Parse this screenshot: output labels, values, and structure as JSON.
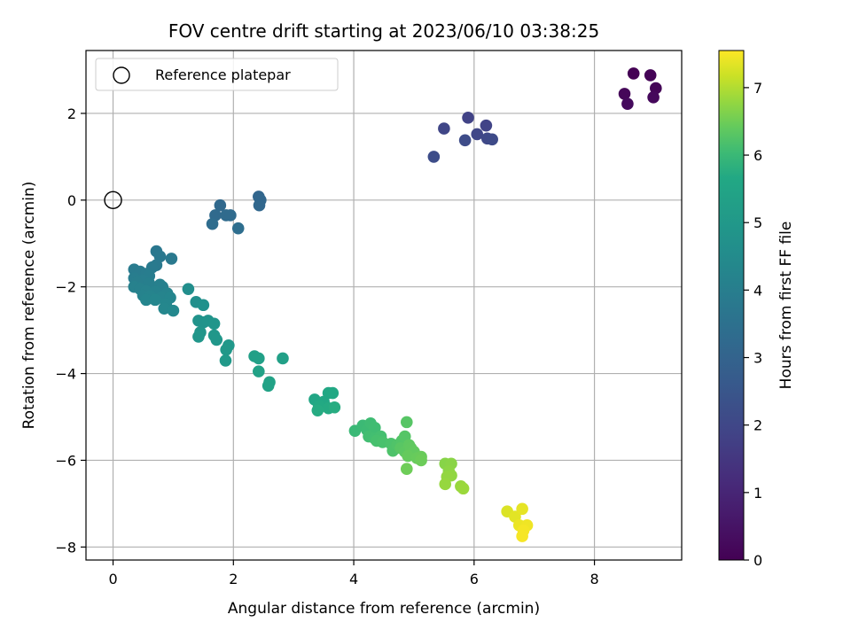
{
  "chart_data": {
    "type": "scatter",
    "title": "FOV centre drift starting at 2023/06/10 03:38:25",
    "xlabel": "Angular distance from reference (arcmin)",
    "ylabel": "Rotation from reference (arcmin)",
    "xlim": [
      -0.45,
      9.45
    ],
    "ylim": [
      -8.3,
      3.45
    ],
    "xticks": [
      0,
      2,
      4,
      6,
      8
    ],
    "yticks": [
      -8,
      -6,
      -4,
      -2,
      0,
      2
    ],
    "grid": true,
    "legend": {
      "placement": "top-left",
      "entries": [
        "Reference platepar"
      ]
    },
    "reference_point": {
      "x": 0,
      "y": 0,
      "label": "Reference platepar"
    },
    "colorbar": {
      "label": "Hours from first FF file",
      "range": [
        0,
        7.55
      ],
      "ticks": [
        0,
        1,
        2,
        3,
        4,
        5,
        6,
        7
      ],
      "colormap": "viridis"
    },
    "points": [
      [
        8.65,
        2.92,
        0.0
      ],
      [
        8.93,
        2.88,
        0.05
      ],
      [
        9.02,
        2.58,
        0.1
      ],
      [
        8.5,
        2.45,
        0.15
      ],
      [
        8.98,
        2.37,
        0.2
      ],
      [
        8.55,
        2.22,
        0.25
      ],
      [
        5.9,
        1.9,
        1.85
      ],
      [
        6.2,
        1.72,
        1.9
      ],
      [
        5.5,
        1.65,
        1.95
      ],
      [
        6.05,
        1.52,
        2.0
      ],
      [
        6.22,
        1.42,
        2.05
      ],
      [
        6.3,
        1.4,
        2.1
      ],
      [
        5.85,
        1.38,
        2.15
      ],
      [
        5.33,
        1.0,
        2.2
      ],
      [
        2.42,
        0.08,
        3.1
      ],
      [
        2.45,
        0.0,
        3.12
      ],
      [
        2.43,
        -0.12,
        3.15
      ],
      [
        1.78,
        -0.12,
        3.2
      ],
      [
        1.7,
        -0.35,
        3.25
      ],
      [
        1.88,
        -0.35,
        3.28
      ],
      [
        1.95,
        -0.35,
        3.3
      ],
      [
        1.65,
        -0.55,
        3.35
      ],
      [
        2.08,
        -0.65,
        3.4
      ],
      [
        0.72,
        -1.18,
        3.75
      ],
      [
        0.78,
        -1.3,
        3.78
      ],
      [
        0.97,
        -1.35,
        3.8
      ],
      [
        0.72,
        -1.5,
        3.82
      ],
      [
        0.65,
        -1.55,
        3.85
      ],
      [
        0.35,
        -1.6,
        3.88
      ],
      [
        0.45,
        -1.65,
        3.9
      ],
      [
        0.55,
        -1.7,
        3.92
      ],
      [
        0.6,
        -1.75,
        3.95
      ],
      [
        0.35,
        -1.8,
        3.97
      ],
      [
        0.5,
        -1.85,
        4.0
      ],
      [
        0.4,
        -1.9,
        4.02
      ],
      [
        0.6,
        -1.92,
        4.04
      ],
      [
        0.78,
        -1.95,
        4.06
      ],
      [
        0.82,
        -2.0,
        4.08
      ],
      [
        0.35,
        -2.0,
        4.1
      ],
      [
        0.45,
        -2.05,
        4.12
      ],
      [
        0.55,
        -2.1,
        4.14
      ],
      [
        0.7,
        -2.12,
        4.16
      ],
      [
        0.9,
        -2.15,
        4.18
      ],
      [
        0.5,
        -2.2,
        4.2
      ],
      [
        0.62,
        -2.22,
        4.22
      ],
      [
        0.8,
        -2.25,
        4.24
      ],
      [
        0.95,
        -2.25,
        4.26
      ],
      [
        0.55,
        -2.3,
        4.28
      ],
      [
        0.7,
        -2.3,
        4.3
      ],
      [
        0.88,
        -2.4,
        4.32
      ],
      [
        0.85,
        -2.5,
        4.35
      ],
      [
        1.0,
        -2.55,
        4.38
      ],
      [
        1.25,
        -2.05,
        4.6
      ],
      [
        1.38,
        -2.35,
        4.65
      ],
      [
        1.5,
        -2.42,
        4.7
      ],
      [
        1.42,
        -2.78,
        4.8
      ],
      [
        1.5,
        -2.82,
        4.82
      ],
      [
        1.58,
        -2.78,
        4.85
      ],
      [
        1.68,
        -2.85,
        4.88
      ],
      [
        1.45,
        -3.05,
        4.9
      ],
      [
        1.42,
        -3.15,
        4.92
      ],
      [
        1.68,
        -3.12,
        4.95
      ],
      [
        1.72,
        -3.22,
        4.98
      ],
      [
        1.92,
        -3.35,
        5.0
      ],
      [
        1.88,
        -3.45,
        5.02
      ],
      [
        1.87,
        -3.7,
        5.05
      ],
      [
        2.35,
        -3.6,
        5.3
      ],
      [
        2.42,
        -3.65,
        5.32
      ],
      [
        2.82,
        -3.65,
        5.35
      ],
      [
        2.42,
        -3.95,
        5.38
      ],
      [
        2.6,
        -4.2,
        5.4
      ],
      [
        2.58,
        -4.28,
        5.42
      ],
      [
        3.35,
        -4.6,
        5.6
      ],
      [
        3.5,
        -4.65,
        5.62
      ],
      [
        3.58,
        -4.45,
        5.64
      ],
      [
        3.65,
        -4.45,
        5.66
      ],
      [
        3.42,
        -4.75,
        5.68
      ],
      [
        3.58,
        -4.8,
        5.7
      ],
      [
        3.4,
        -4.85,
        5.72
      ],
      [
        3.68,
        -4.78,
        5.74
      ],
      [
        4.02,
        -5.32,
        6.0
      ],
      [
        4.15,
        -5.2,
        6.02
      ],
      [
        4.22,
        -5.3,
        6.04
      ],
      [
        4.28,
        -5.15,
        6.06
      ],
      [
        4.35,
        -5.25,
        6.08
      ],
      [
        4.25,
        -5.45,
        6.1
      ],
      [
        4.35,
        -5.5,
        6.12
      ],
      [
        4.45,
        -5.45,
        6.14
      ],
      [
        4.38,
        -5.55,
        6.16
      ],
      [
        4.48,
        -5.58,
        6.18
      ],
      [
        4.62,
        -5.62,
        6.2
      ],
      [
        4.65,
        -5.78,
        6.22
      ],
      [
        4.72,
        -5.65,
        6.24
      ],
      [
        4.8,
        -5.55,
        6.26
      ],
      [
        4.85,
        -5.45,
        6.28
      ],
      [
        4.88,
        -5.12,
        6.3
      ],
      [
        4.78,
        -5.72,
        6.32
      ],
      [
        4.85,
        -5.8,
        6.34
      ],
      [
        4.92,
        -5.65,
        6.36
      ],
      [
        4.95,
        -5.72,
        6.38
      ],
      [
        5.0,
        -5.8,
        6.4
      ],
      [
        4.9,
        -5.9,
        6.42
      ],
      [
        5.05,
        -5.95,
        6.44
      ],
      [
        5.12,
        -5.92,
        6.46
      ],
      [
        5.12,
        -6.0,
        6.48
      ],
      [
        4.88,
        -6.2,
        6.5
      ],
      [
        5.52,
        -6.08,
        6.7
      ],
      [
        5.62,
        -6.08,
        6.72
      ],
      [
        5.58,
        -6.25,
        6.74
      ],
      [
        5.62,
        -6.35,
        6.76
      ],
      [
        5.55,
        -6.38,
        6.78
      ],
      [
        5.52,
        -6.55,
        6.8
      ],
      [
        5.78,
        -6.6,
        6.82
      ],
      [
        5.82,
        -6.65,
        6.84
      ],
      [
        6.55,
        -7.18,
        7.3
      ],
      [
        6.68,
        -7.3,
        7.35
      ],
      [
        6.8,
        -7.12,
        7.38
      ],
      [
        6.75,
        -7.5,
        7.42
      ],
      [
        6.88,
        -7.5,
        7.45
      ],
      [
        6.82,
        -7.62,
        7.48
      ],
      [
        6.8,
        -7.75,
        7.5
      ]
    ]
  }
}
